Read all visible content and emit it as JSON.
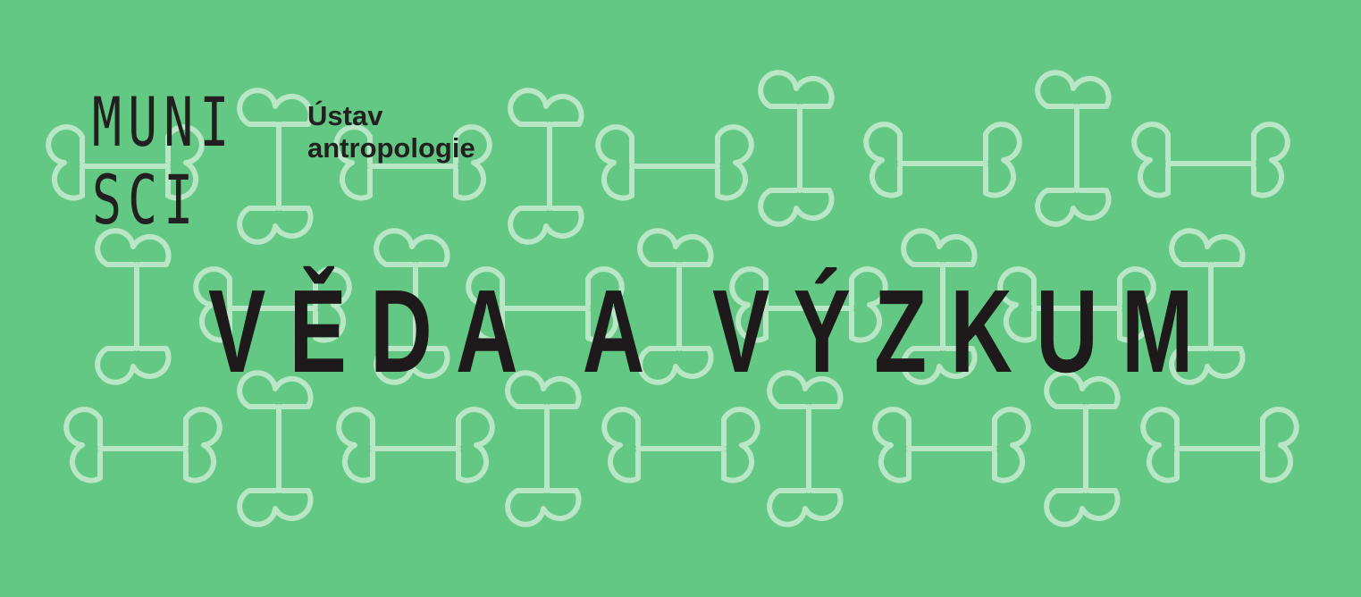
{
  "logo": {
    "line1": "MUNI",
    "line2": "SCI"
  },
  "department": {
    "line1": "Ústav",
    "line2": "antropologie"
  },
  "headline": "VĚDA A VÝZKUM",
  "colors": {
    "background": "#63c883",
    "pattern": "#b9e6c4",
    "text": "#231f20"
  },
  "pattern_icon": "bone-icon"
}
